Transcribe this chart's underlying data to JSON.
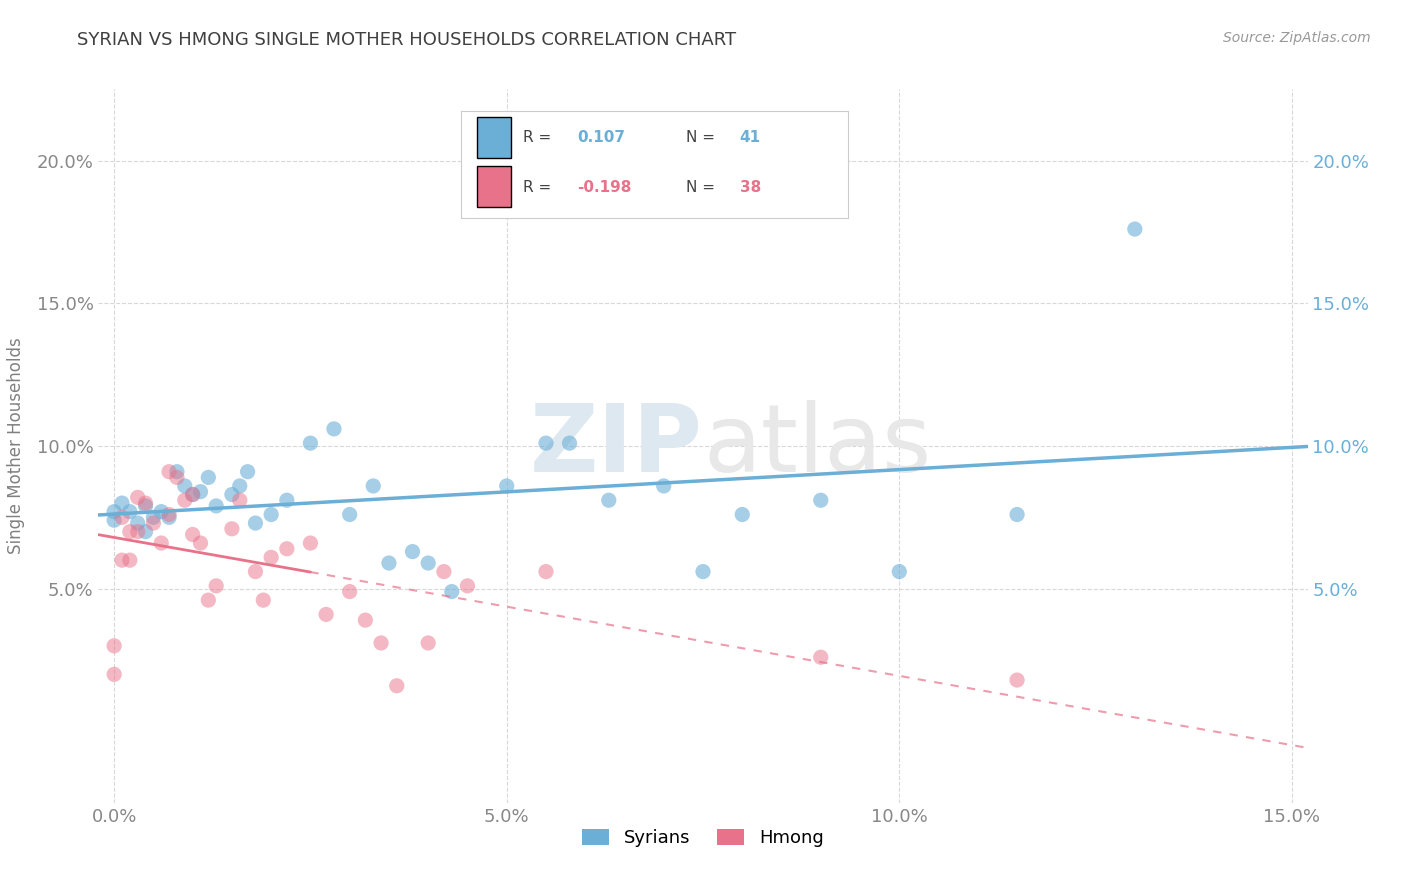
{
  "title": "SYRIAN VS HMONG SINGLE MOTHER HOUSEHOLDS CORRELATION CHART",
  "source": "Source: ZipAtlas.com",
  "ylabel": "Single Mother Households",
  "watermark": "ZIPatlas",
  "xlim": [
    -0.002,
    0.152
  ],
  "ylim": [
    -0.025,
    0.225
  ],
  "xticks": [
    0.0,
    0.05,
    0.1,
    0.15
  ],
  "xticklabels": [
    "0.0%",
    "5.0%",
    "10.0%",
    "15.0%"
  ],
  "yticks": [
    0.05,
    0.1,
    0.15,
    0.2
  ],
  "yticklabels": [
    "5.0%",
    "10.0%",
    "15.0%",
    "20.0%"
  ],
  "syrians_color": "#6baed6",
  "hmong_color": "#e8728a",
  "syrian_R": 0.107,
  "syrian_N": 41,
  "hmong_R": -0.198,
  "hmong_N": 38,
  "syrians_x": [
    0.0,
    0.0,
    0.001,
    0.002,
    0.003,
    0.004,
    0.004,
    0.005,
    0.006,
    0.007,
    0.008,
    0.009,
    0.01,
    0.011,
    0.012,
    0.013,
    0.015,
    0.016,
    0.017,
    0.018,
    0.02,
    0.022,
    0.025,
    0.028,
    0.03,
    0.033,
    0.035,
    0.038,
    0.04,
    0.043,
    0.05,
    0.055,
    0.058,
    0.063,
    0.07,
    0.075,
    0.08,
    0.09,
    0.1,
    0.115,
    0.13
  ],
  "syrians_y": [
    0.077,
    0.074,
    0.08,
    0.077,
    0.073,
    0.079,
    0.07,
    0.075,
    0.077,
    0.075,
    0.091,
    0.086,
    0.083,
    0.084,
    0.089,
    0.079,
    0.083,
    0.086,
    0.091,
    0.073,
    0.076,
    0.081,
    0.101,
    0.106,
    0.076,
    0.086,
    0.059,
    0.063,
    0.059,
    0.049,
    0.086,
    0.101,
    0.101,
    0.081,
    0.086,
    0.056,
    0.076,
    0.081,
    0.056,
    0.076,
    0.176
  ],
  "hmong_x": [
    0.0,
    0.0,
    0.001,
    0.001,
    0.002,
    0.002,
    0.003,
    0.003,
    0.004,
    0.005,
    0.006,
    0.007,
    0.007,
    0.008,
    0.009,
    0.01,
    0.01,
    0.011,
    0.012,
    0.013,
    0.015,
    0.016,
    0.018,
    0.019,
    0.02,
    0.022,
    0.025,
    0.027,
    0.03,
    0.032,
    0.034,
    0.036,
    0.04,
    0.042,
    0.045,
    0.055,
    0.09,
    0.115
  ],
  "hmong_y": [
    0.03,
    0.02,
    0.075,
    0.06,
    0.06,
    0.07,
    0.082,
    0.07,
    0.08,
    0.073,
    0.066,
    0.076,
    0.091,
    0.089,
    0.081,
    0.083,
    0.069,
    0.066,
    0.046,
    0.051,
    0.071,
    0.081,
    0.056,
    0.046,
    0.061,
    0.064,
    0.066,
    0.041,
    0.049,
    0.039,
    0.031,
    0.016,
    0.031,
    0.056,
    0.051,
    0.056,
    0.026,
    0.018
  ],
  "background_color": "#ffffff",
  "grid_color": "#d8d8d8",
  "title_color": "#404040",
  "axis_label_color": "#808080",
  "tick_color": "#888888"
}
